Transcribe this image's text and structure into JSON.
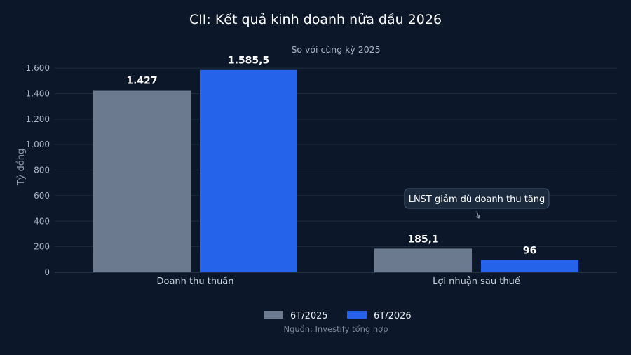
{
  "chart_data": {
    "type": "bar",
    "title": "CII: Kết quả kinh doanh nửa đầu 2026",
    "subtitle": "So với cùng kỳ 2025",
    "ylabel": "Tỷ đồng",
    "xlabel": "",
    "categories": [
      "Doanh thu thuần",
      "Lợi nhuận sau thuế"
    ],
    "series": [
      {
        "name": "6T/2025",
        "values": [
          1427,
          185.1
        ],
        "labels": [
          "1.427",
          "185,1"
        ],
        "color": "#6b7a8f"
      },
      {
        "name": "6T/2026",
        "values": [
          1585.5,
          96
        ],
        "labels": [
          "1.585,5",
          "96"
        ],
        "color": "#2563eb"
      }
    ],
    "ylim": [
      0,
      1650
    ],
    "yticks": [
      0,
      200,
      400,
      600,
      800,
      1000,
      1200,
      1400,
      1600
    ],
    "ytick_labels": [
      "0",
      "200",
      "400",
      "600",
      "800",
      "1.000",
      "1.200",
      "1.400",
      "1.600"
    ],
    "grid": true,
    "legend_position": "bottom-center",
    "annotation": {
      "text": "LNST giảm dù doanh thu tăng",
      "category_index": 1,
      "series_index": 1
    },
    "source": "Nguồn: Investify tổng hợp"
  }
}
